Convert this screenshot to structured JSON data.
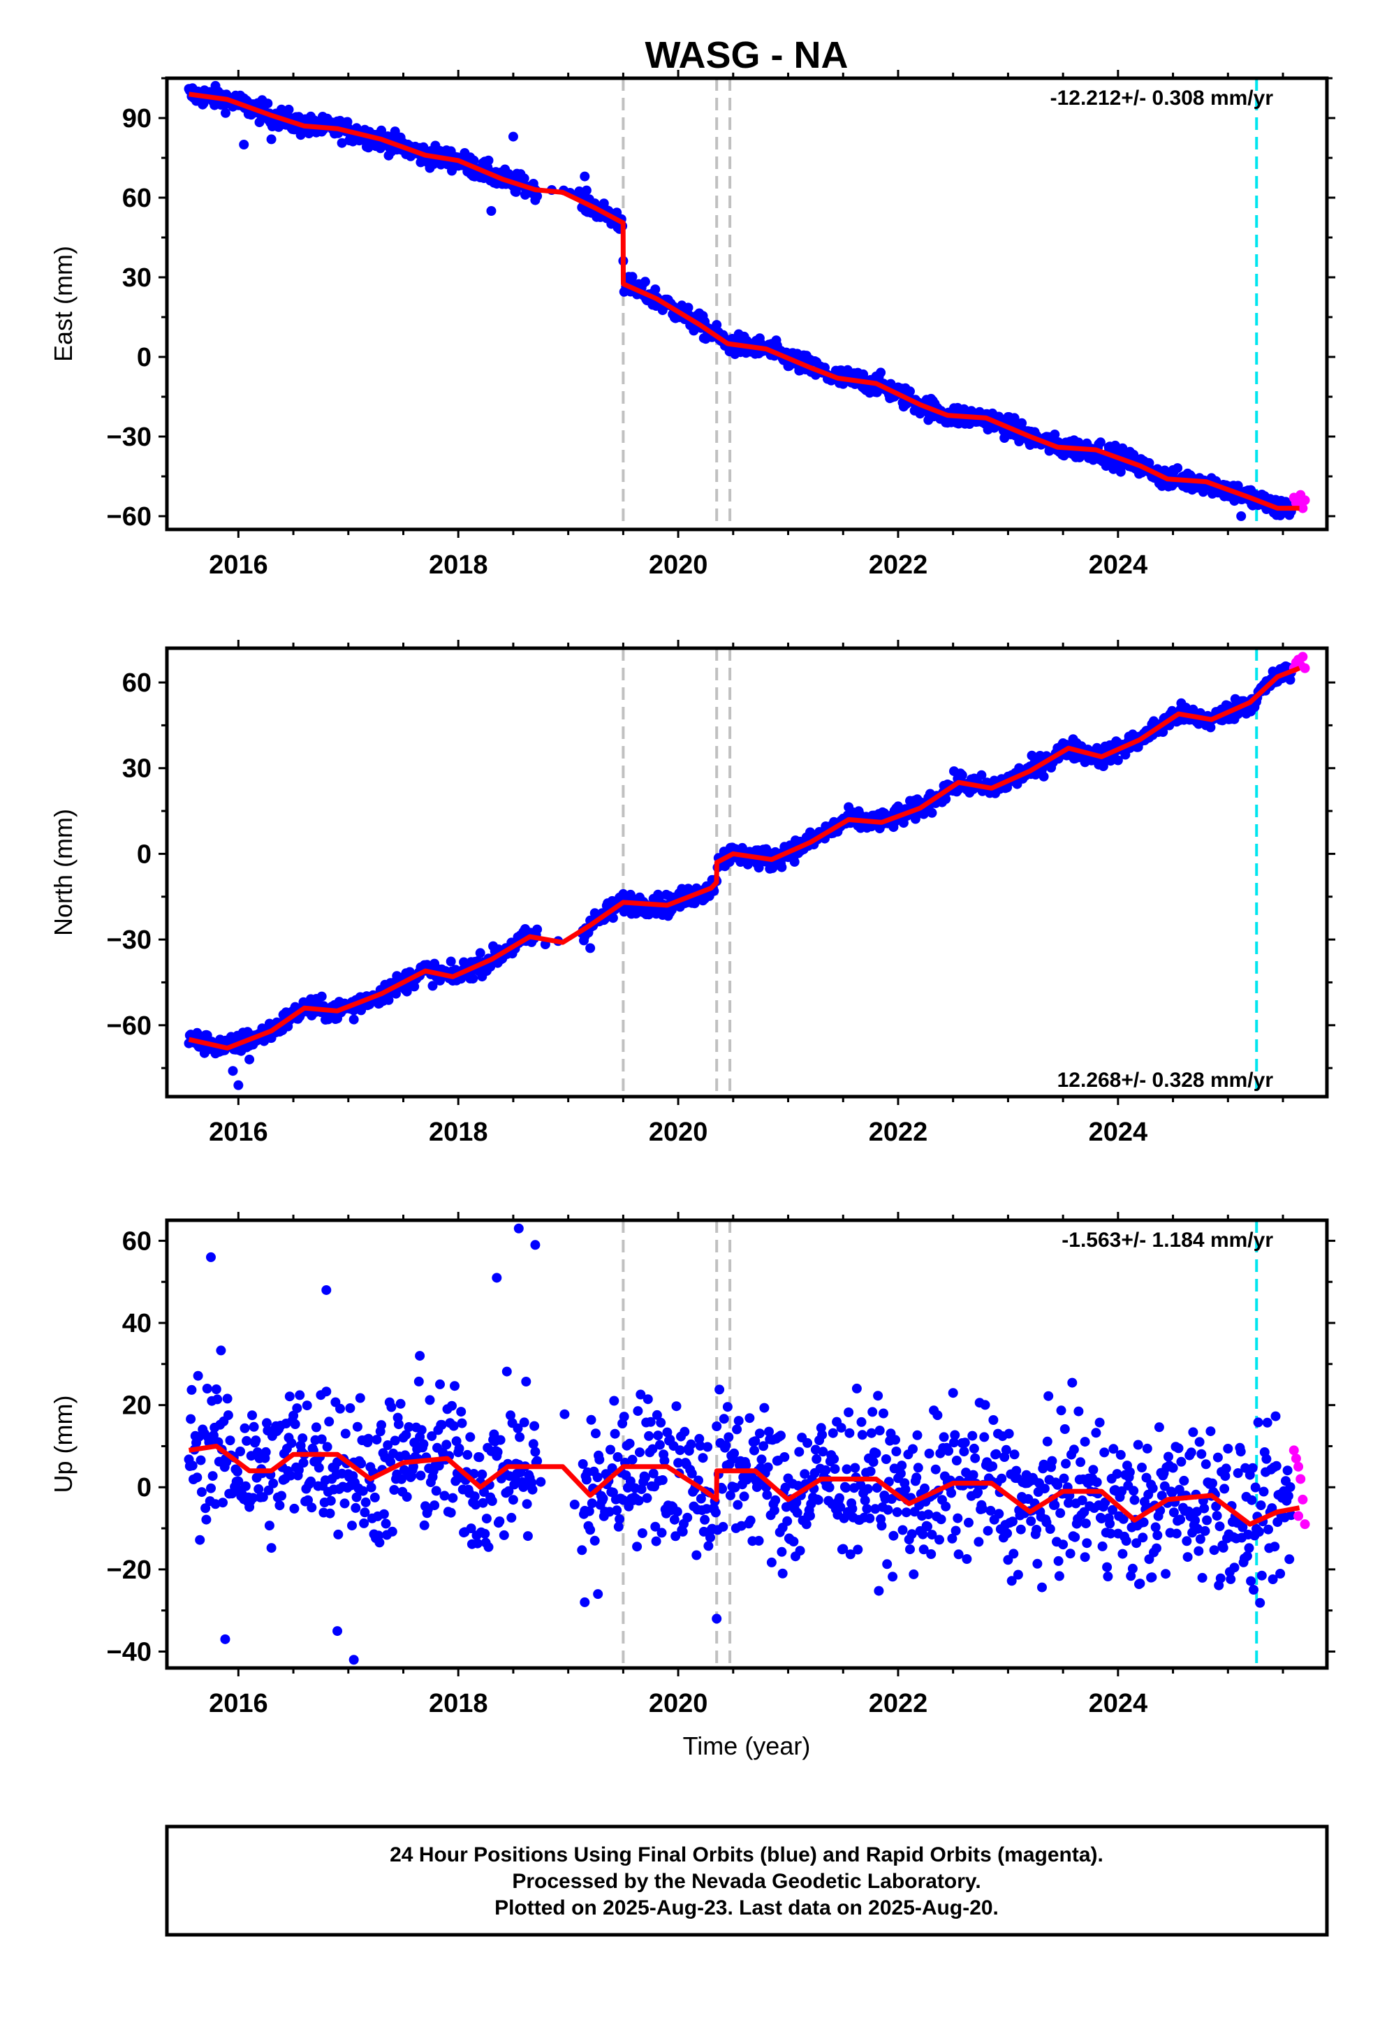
{
  "chart_data": {
    "type": "scatter",
    "title": "WASG - NA",
    "xlabel": "Time (year)",
    "xlim": [
      2015.35,
      2025.9
    ],
    "xticks": [
      2016,
      2018,
      2020,
      2022,
      2024
    ],
    "equipment_change_years": [
      2019.5,
      2020.35,
      2020.47
    ],
    "last_marker_year": 2025.26,
    "colors": {
      "final": "#0000ff",
      "rapid": "#ff00ff",
      "model": "#ff0000",
      "event": "#c0c0c0",
      "marker": "#00e5ee"
    },
    "legend": {
      "final_label": "Final Orbits (blue)",
      "rapid_label": "Rapid Orbits (magenta)"
    },
    "panels": [
      {
        "name": "East",
        "ylabel": "East (mm)",
        "ylim": [
          -65,
          105
        ],
        "yticks": [
          -60,
          -30,
          0,
          30,
          60,
          90
        ],
        "rate": "-12.212+/- 0.308 mm/yr",
        "rate_position": "top-right",
        "scatter": 2.0,
        "gaps": [
          [
            2018.72,
            2019.12
          ]
        ],
        "model": [
          [
            2015.55,
            99
          ],
          [
            2015.9,
            97
          ],
          [
            2016.3,
            91
          ],
          [
            2016.6,
            87
          ],
          [
            2016.9,
            86
          ],
          [
            2017.3,
            82
          ],
          [
            2017.7,
            76
          ],
          [
            2018.0,
            74
          ],
          [
            2018.4,
            67
          ],
          [
            2018.7,
            63
          ],
          [
            2018.95,
            62
          ],
          [
            2019.25,
            56
          ],
          [
            2019.499,
            50.5
          ],
          [
            2019.501,
            27.5
          ],
          [
            2019.8,
            22
          ],
          [
            2020.2,
            12
          ],
          [
            2020.45,
            5
          ],
          [
            2020.8,
            3
          ],
          [
            2021.2,
            -4
          ],
          [
            2021.45,
            -8
          ],
          [
            2021.8,
            -10
          ],
          [
            2022.2,
            -18
          ],
          [
            2022.45,
            -22
          ],
          [
            2022.8,
            -23
          ],
          [
            2023.2,
            -30
          ],
          [
            2023.45,
            -34
          ],
          [
            2023.8,
            -35
          ],
          [
            2024.2,
            -41
          ],
          [
            2024.45,
            -46
          ],
          [
            2024.8,
            -47
          ],
          [
            2025.2,
            -53
          ],
          [
            2025.45,
            -57
          ],
          [
            2025.65,
            -57
          ]
        ],
        "rapid": [
          [
            2025.6,
            -53
          ],
          [
            2025.62,
            -55
          ],
          [
            2025.64,
            -56
          ],
          [
            2025.66,
            -52
          ],
          [
            2025.68,
            -57
          ],
          [
            2025.7,
            -54
          ]
        ],
        "outliers": [
          [
            2016.05,
            80
          ],
          [
            2016.3,
            82
          ],
          [
            2018.5,
            83
          ],
          [
            2018.3,
            55
          ],
          [
            2019.15,
            68
          ],
          [
            2025.12,
            -60
          ]
        ]
      },
      {
        "name": "North",
        "ylabel": "North (mm)",
        "ylim": [
          -85,
          72
        ],
        "yticks": [
          -60,
          -30,
          0,
          30,
          60
        ],
        "rate": "12.268+/- 0.328 mm/yr",
        "rate_position": "bottom-right",
        "scatter": 1.8,
        "gaps": [
          [
            2018.72,
            2019.12
          ]
        ],
        "model": [
          [
            2015.55,
            -65
          ],
          [
            2015.9,
            -68
          ],
          [
            2016.3,
            -62
          ],
          [
            2016.6,
            -54
          ],
          [
            2016.9,
            -55
          ],
          [
            2017.3,
            -49
          ],
          [
            2017.7,
            -41
          ],
          [
            2017.95,
            -43
          ],
          [
            2018.3,
            -37
          ],
          [
            2018.65,
            -29
          ],
          [
            2018.95,
            -31
          ],
          [
            2019.2,
            -25
          ],
          [
            2019.5,
            -17
          ],
          [
            2019.9,
            -18
          ],
          [
            2020.3,
            -12
          ],
          [
            2020.349,
            -10
          ],
          [
            2020.351,
            -3
          ],
          [
            2020.5,
            0
          ],
          [
            2020.85,
            -2
          ],
          [
            2021.2,
            4
          ],
          [
            2021.55,
            12
          ],
          [
            2021.85,
            11
          ],
          [
            2022.2,
            16
          ],
          [
            2022.55,
            25
          ],
          [
            2022.85,
            23
          ],
          [
            2023.2,
            29
          ],
          [
            2023.55,
            37
          ],
          [
            2023.85,
            34
          ],
          [
            2024.2,
            40
          ],
          [
            2024.55,
            49
          ],
          [
            2024.85,
            47
          ],
          [
            2025.2,
            53
          ],
          [
            2025.45,
            62
          ],
          [
            2025.65,
            65
          ]
        ],
        "rapid": [
          [
            2025.6,
            65
          ],
          [
            2025.62,
            67
          ],
          [
            2025.64,
            68
          ],
          [
            2025.66,
            66
          ],
          [
            2025.68,
            69
          ],
          [
            2025.7,
            65
          ]
        ],
        "outliers": [
          [
            2016.0,
            -81
          ],
          [
            2015.95,
            -76
          ],
          [
            2016.1,
            -72
          ],
          [
            2019.2,
            -33
          ],
          [
            2017.05,
            -58
          ]
        ]
      },
      {
        "name": "Up",
        "ylabel": "Up (mm)",
        "ylim": [
          -44,
          65
        ],
        "yticks": [
          -40,
          -20,
          0,
          20,
          40,
          60
        ],
        "rate": "-1.563+/- 1.184 mm/yr",
        "rate_position": "top-right",
        "scatter": 9.0,
        "gaps": [
          [
            2018.72,
            2019.12
          ]
        ],
        "model": [
          [
            2015.55,
            9
          ],
          [
            2015.8,
            10
          ],
          [
            2016.1,
            4
          ],
          [
            2016.3,
            4
          ],
          [
            2016.5,
            8
          ],
          [
            2016.9,
            8
          ],
          [
            2017.2,
            2
          ],
          [
            2017.5,
            6
          ],
          [
            2017.9,
            7
          ],
          [
            2018.2,
            0
          ],
          [
            2018.45,
            5
          ],
          [
            2018.95,
            5
          ],
          [
            2019.2,
            -2
          ],
          [
            2019.5,
            5
          ],
          [
            2019.9,
            5
          ],
          [
            2020.25,
            -1
          ],
          [
            2020.349,
            -3
          ],
          [
            2020.351,
            4
          ],
          [
            2020.7,
            4
          ],
          [
            2021.0,
            -3
          ],
          [
            2021.3,
            2
          ],
          [
            2021.8,
            2
          ],
          [
            2022.1,
            -4
          ],
          [
            2022.5,
            1
          ],
          [
            2022.85,
            1
          ],
          [
            2023.2,
            -6
          ],
          [
            2023.5,
            -1
          ],
          [
            2023.85,
            -1
          ],
          [
            2024.15,
            -8
          ],
          [
            2024.45,
            -3
          ],
          [
            2024.85,
            -2
          ],
          [
            2025.2,
            -9
          ],
          [
            2025.45,
            -6
          ],
          [
            2025.65,
            -5
          ]
        ],
        "rapid": [
          [
            2025.6,
            9
          ],
          [
            2025.62,
            7
          ],
          [
            2025.64,
            5
          ],
          [
            2025.66,
            2
          ],
          [
            2025.68,
            -3
          ],
          [
            2025.7,
            -9
          ],
          [
            2025.64,
            -7
          ]
        ],
        "outliers": [
          [
            2015.75,
            56
          ],
          [
            2015.88,
            -37
          ],
          [
            2016.8,
            48
          ],
          [
            2017.05,
            -42
          ],
          [
            2018.55,
            63
          ],
          [
            2018.7,
            59
          ],
          [
            2018.35,
            51
          ],
          [
            2020.35,
            -32
          ],
          [
            2016.9,
            -35
          ],
          [
            2017.65,
            32
          ],
          [
            2019.15,
            -28
          ],
          [
            2019.27,
            -26
          ],
          [
            2020.95,
            -21
          ],
          [
            2023.7,
            -17
          ],
          [
            2024.3,
            -22
          ]
        ]
      }
    ],
    "footer": [
      "24 Hour Positions Using Final Orbits (blue) and Rapid Orbits (magenta).",
      "Processed by the Nevada Geodetic Laboratory.",
      "Plotted on 2025-Aug-23. Last data on 2025-Aug-20."
    ]
  }
}
